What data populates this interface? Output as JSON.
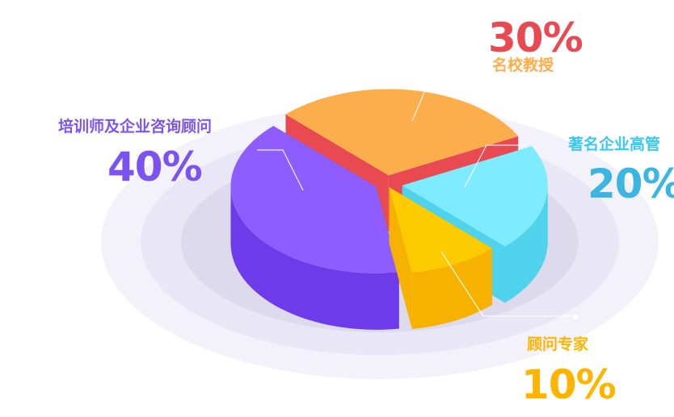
{
  "chart_data": {
    "type": "pie",
    "style": "3d-exploded",
    "slices": [
      {
        "label": "名校教授",
        "value": 30,
        "value_text": "30%",
        "color_top": "#FDAE4C",
        "color_side": "#E94A51",
        "label_color": "#FDAE4C",
        "value_color": "#E94A51"
      },
      {
        "label": "著名企业高管",
        "value": 20,
        "value_text": "20%",
        "color_top": "#7FEBFE",
        "color_side": "#4FD3EC",
        "label_color": "#3BC8EE",
        "value_color": "#3BB6E3"
      },
      {
        "label": "顾问专家",
        "value": 10,
        "value_text": "10%",
        "color_top": "#FECB00",
        "color_side": "#F7B200",
        "label_color": "#FFB400",
        "value_color": "#FFB400"
      },
      {
        "label": "培训师及企业咨询顾问",
        "value": 40,
        "value_text": "40%",
        "color_top": "#8F5CFF",
        "color_side": "#6E3BEB",
        "label_color": "#7B53F1",
        "value_color": "#7B53F1"
      }
    ],
    "legend": "none",
    "background_rings": true
  }
}
